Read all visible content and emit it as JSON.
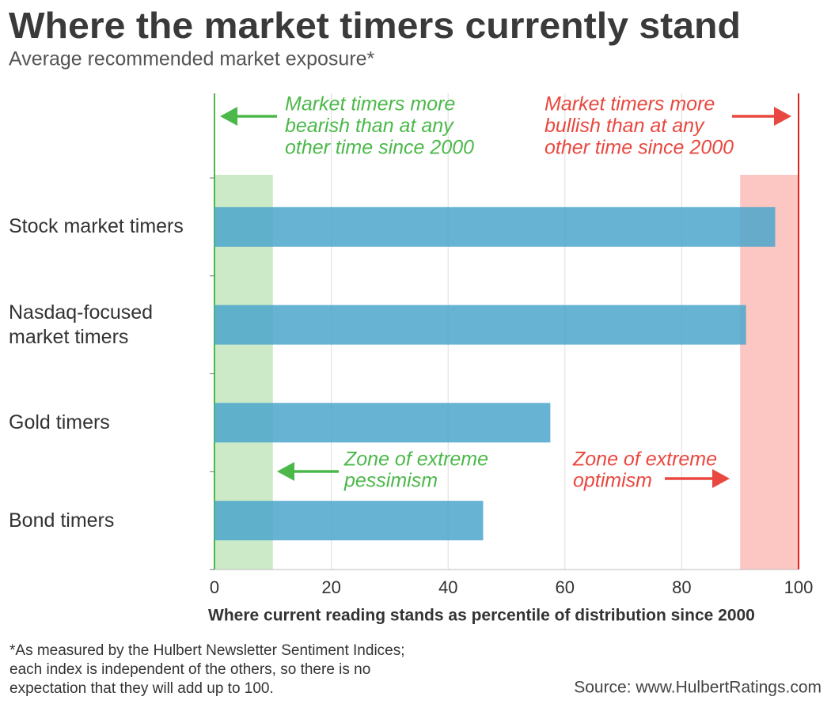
{
  "chart_data": {
    "type": "bar",
    "orientation": "horizontal",
    "title": "Where the market timers currently stand",
    "subtitle": "Average recommended market exposure*",
    "categories": [
      "Stock market timers",
      "Nasdaq-focused market timers",
      "Gold timers",
      "Bond timers"
    ],
    "values": [
      96,
      91,
      57.5,
      46
    ],
    "color": "#4ba6cb",
    "xlim": [
      0,
      100
    ],
    "xticks": [
      0,
      20,
      40,
      60,
      80,
      100
    ],
    "grid": true,
    "xlabel": "Where current reading stands as percentile of distribution since 2000",
    "zones": [
      {
        "range": [
          0,
          10
        ],
        "color": "#cdeac8",
        "label_lines": [
          "Zone of extreme",
          "pessimism"
        ]
      },
      {
        "range": [
          90,
          100
        ],
        "color": "#fcc6c3",
        "label_lines": [
          "Zone of extreme",
          "optimism"
        ]
      }
    ],
    "annotations": [
      {
        "lines": [
          "Market timers more",
          "bearish than at any",
          "other time since 2000"
        ],
        "color": "#4cb84a"
      },
      {
        "lines": [
          "Market timers more",
          "bullish than at any",
          "other time since 2000"
        ],
        "color": "#e8483f"
      }
    ],
    "footnote": [
      "*As measured by the Hulbert Newsletter Sentiment Indices;",
      "each index is independent of the others, so there is no",
      "expectation that they will add up to 100."
    ],
    "source": "Source: www.HulbertRatings.com"
  }
}
